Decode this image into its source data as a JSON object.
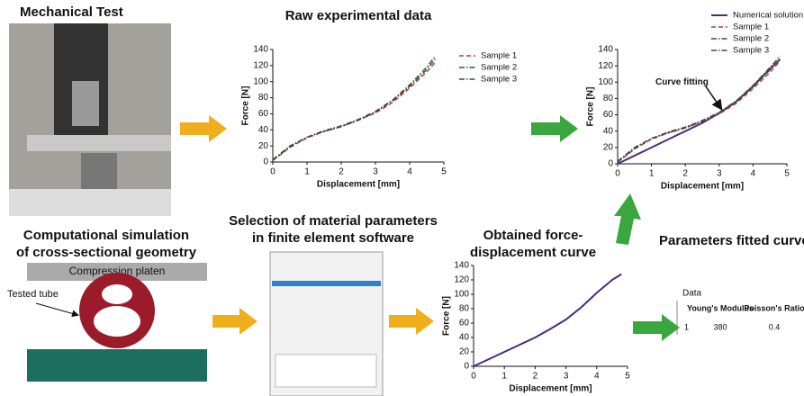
{
  "labels": {
    "mechanical_test": "Mechanical Test",
    "simulation": [
      "Computational simulation",
      "of cross-sectional geometry"
    ],
    "selection": [
      "Selection of material parameters",
      "in finite element software"
    ],
    "obtained": [
      "Obtained force-",
      "displacement curve"
    ],
    "fitted": "Parameters fitted curve",
    "platen": "Compression platen",
    "tube": "Tested tube"
  },
  "table": {
    "title": "Data",
    "headers": [
      "Young's Modulus",
      "Poisson's Ratio"
    ],
    "rows": [
      [
        "1",
        "380",
        "0.4"
      ]
    ]
  },
  "chart_data": [
    {
      "type": "line",
      "title": "Raw experimental data",
      "xlabel": "Displacement [mm]",
      "ylabel": "Force [N]",
      "xlim": [
        0,
        5
      ],
      "xticks": [
        0,
        1,
        2,
        3,
        4,
        5
      ],
      "ylim": [
        0,
        140
      ],
      "yticks": [
        0,
        20,
        40,
        60,
        80,
        100,
        120,
        140
      ],
      "legend": "right",
      "x": [
        0,
        0.5,
        1,
        1.5,
        2,
        2.5,
        3,
        3.5,
        4,
        4.5,
        4.75
      ],
      "series": [
        {
          "name": "Sample 1",
          "color": "#c0392b",
          "line_style": "dashed",
          "values": [
            2,
            18,
            30,
            38,
            44,
            52,
            61,
            74,
            92,
            112,
            124
          ]
        },
        {
          "name": "Sample 2",
          "color": "#1f5c3a",
          "line_style": "dashdot",
          "values": [
            3,
            20,
            31,
            39,
            45,
            53,
            63,
            77,
            96,
            118,
            132
          ]
        },
        {
          "name": "Sample 3",
          "color": "#444444",
          "line_style": "dashdot",
          "values": [
            2,
            19,
            31,
            38,
            44,
            52,
            62,
            76,
            94,
            115,
            128
          ]
        }
      ]
    },
    {
      "type": "line",
      "annotation": "Curve fitting",
      "xlabel": "Displacement [mm]",
      "ylabel": "Force [N]",
      "xlim": [
        0,
        5
      ],
      "xticks": [
        0,
        1,
        2,
        3,
        4,
        5
      ],
      "ylim": [
        0,
        140
      ],
      "yticks": [
        0,
        20,
        40,
        60,
        80,
        100,
        120,
        140
      ],
      "legend": "top",
      "x": [
        0,
        0.5,
        1,
        1.5,
        2,
        2.5,
        3,
        3.5,
        4,
        4.5,
        4.8
      ],
      "series": [
        {
          "name": "Numerical solution",
          "color": "#4b2a7a",
          "line_style": "solid",
          "values": [
            0,
            10,
            20,
            30,
            40,
            50,
            62,
            76,
            95,
            116,
            128
          ]
        },
        {
          "name": "Sample 1",
          "color": "#c0392b",
          "line_style": "dashed",
          "values": [
            2,
            18,
            30,
            38,
            44,
            52,
            61,
            74,
            92,
            112,
            126
          ]
        },
        {
          "name": "Sample 2",
          "color": "#1f5c3a",
          "line_style": "dashdot",
          "values": [
            3,
            20,
            31,
            39,
            45,
            53,
            63,
            77,
            96,
            118,
            132
          ]
        },
        {
          "name": "Sample 3",
          "color": "#444444",
          "line_style": "dashdot",
          "values": [
            2,
            19,
            31,
            38,
            44,
            52,
            62,
            76,
            94,
            115,
            129
          ]
        }
      ]
    },
    {
      "type": "line",
      "xlabel": "Displacement [mm]",
      "ylabel": "Force [N]",
      "xlim": [
        0,
        5
      ],
      "xticks": [
        0,
        1,
        2,
        3,
        4,
        5
      ],
      "ylim": [
        0,
        140
      ],
      "yticks": [
        0,
        20,
        40,
        60,
        80,
        100,
        120,
        140
      ],
      "x": [
        0,
        0.5,
        1,
        1.5,
        2,
        2.5,
        3,
        3.5,
        4,
        4.5,
        4.8
      ],
      "series": [
        {
          "color": "#4b2a7a",
          "line_style": "solid",
          "values": [
            0,
            10,
            20,
            30,
            40,
            52,
            65,
            82,
            102,
            120,
            128
          ]
        }
      ]
    }
  ]
}
